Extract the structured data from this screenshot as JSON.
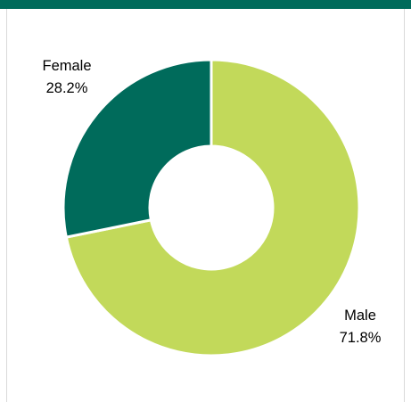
{
  "header": {
    "bar_color": "#006b5b"
  },
  "chart_data": {
    "type": "pie",
    "donut": true,
    "title": "",
    "slices": [
      {
        "label": "Male",
        "value": 71.8,
        "value_label": "71.8%",
        "color": "#c2d95a"
      },
      {
        "label": "Female",
        "value": 28.2,
        "value_label": "28.2%",
        "color": "#006b5b"
      }
    ],
    "start": "12 o'clock",
    "direction": "clockwise",
    "legend": "none"
  }
}
